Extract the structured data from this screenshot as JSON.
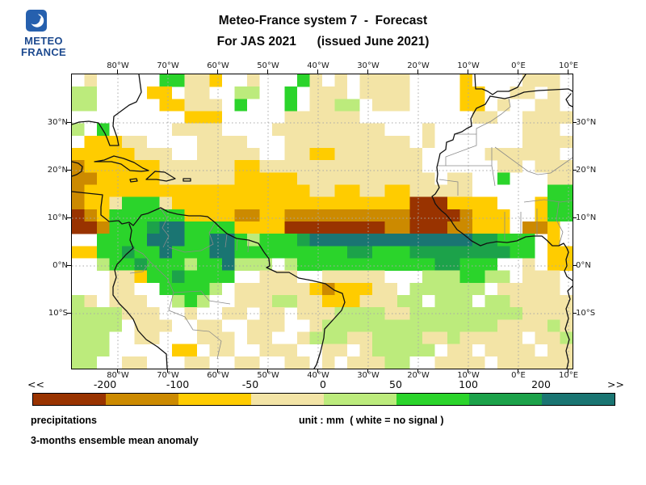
{
  "logo": {
    "line1": "METEO",
    "line2": "FRANCE"
  },
  "title": {
    "line1": "Meteo-France system 7  -  Forecast",
    "line2": "For JAS 2021      (issued June 2021)"
  },
  "axes": {
    "lon_labels": [
      "80°W",
      "70°W",
      "60°W",
      "50°W",
      "40°W",
      "30°W",
      "20°W",
      "10°W",
      "0°E",
      "10°E"
    ],
    "lat_labels": [
      "30°N",
      "20°N",
      "10°N",
      "0°N",
      "10°S"
    ]
  },
  "colorbar": {
    "left_arrow": "<<",
    "right_arrow": ">>",
    "tick_labels": [
      "-200",
      "-100",
      "-50",
      "0",
      "50",
      "100",
      "200"
    ],
    "colors": [
      "#993300",
      "#CC8A00",
      "#FFCC00",
      "#F3E4A6",
      "#BCEB7C",
      "#2BD42B",
      "#1CA24A",
      "#1A7572"
    ]
  },
  "footer": {
    "label1": "precipitations",
    "label2": "3-months ensemble mean anomaly",
    "unit": "unit : mm  ( white = no signal )"
  },
  "map_grid": {
    "legend": {
      ".": "white = no signal",
      "1": "< -200 mm",
      "2": "-200 to -100 mm",
      "3": "-100 to -50 mm",
      "4": "-50 to 0 mm",
      "5": "0 to 50 mm",
      "6": "50 to 100 mm",
      "7": "100 to 200 mm",
      "8": "> 200 mm"
    },
    "palette": {
      "1": "#993300",
      "2": "#CC8A00",
      "3": "#FFCC00",
      "4": "#F3E4A6",
      "5": "#BCEB7C",
      "6": "#2BD42B",
      "7": "#1CA24A",
      "8": "#1A7572"
    },
    "rows": [
      [
        ".4.....664",
        "43..4...64",
        ".4.4444...",
        ".3....444."
      ],
      [
        "55....33.4",
        "4..55..6.4",
        "44.4444...",
        ".33..44.4."
      ],
      [
        "55.....334",
        "44.6...6.4",
        "455.444...",
        ".33.4..44."
      ],
      [
        ".........3",
        "33.....444",
        "444.......",
        "..44..4444"
      ],
      [
        "5.6.....44",
        "44....4444",
        "44444...4.",
        "......444."
      ],
      [
        ".33344....",
        "4444...444",
        "4444444.4.",
        "......4444"
      ],
      [
        "33333444..",
        "44444..443",
        "34444444..",
        "...444444."
      ],
      [
        "2333333444",
        "4443344444",
        "44444444..",
        "....44.444"
      ],
      [
        "2233333444",
        "4443333344",
        "444444444.",
        "44..6...44"
      ],
      [
        "2333333333",
        "3333333334",
        "4334433444",
        "44......66"
      ],
      [
        "2334666433",
        "3333333333",
        "3333333111",
        "3333...366"
      ],
      [
        "1236666663",
        "3332233222",
        "2222222111",
        "12333..366"
      ],
      [
        "1126667886",
        "6663333111",
        "1111122111",
        "22333.223."
      ],
      [
        "..66668886",
        "6886566678",
        "8888888888",
        "8877666.3."
      ],
      [
        "3366766866",
        "6886666666",
        "6677666777",
        "7777766.33"
      ],
      [
        "..56676665",
        "668555.566",
        "6666666667",
        "7666..4.33"
      ],
      [
        "...4436676",
        "666..444..",
        "44444...55",
        "56655.444."
      ],
      [
        "...44..666",
        "65.4444443",
        "233344.555",
        "555.44444."
      ],
      [
        "54.444..56",
        "5..4445544",
        "33344455.5",
        "55.5544444"
      ],
      [
        "5555444..4",
        "..44.44.44",
        "4555544555",
        "5555554444"
      ],
      [
        "5555.444..",
        "44..444..4",
        "5555555555",
        "5555444454"
      ],
      [
        "555..44...",
        "444.44..45",
        "5544555544",
        "544444.445"
      ],
      [
        "555.....33",
        ".44..444..",
        "44.455555.",
        "44.4444.44"
      ],
      [
        "55..44...4",
        "4..44..44.",
        "4.44455..4",
        "444.444444"
      ]
    ]
  }
}
